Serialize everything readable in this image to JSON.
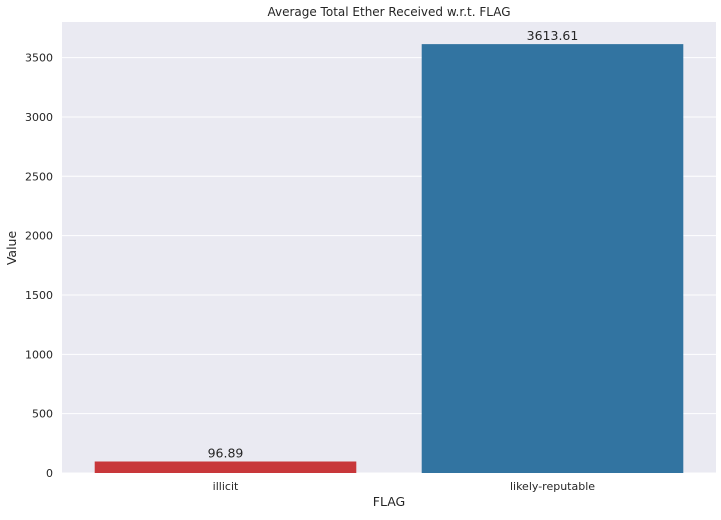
{
  "chart_data": {
    "type": "bar",
    "title": "Average Total Ether Received w.r.t. FLAG",
    "xlabel": "FLAG",
    "ylabel": "Value",
    "categories": [
      "illicit",
      "likely-reputable"
    ],
    "values": [
      96.89,
      3613.61
    ],
    "value_labels": [
      "96.89",
      "3613.61"
    ],
    "ylim": [
      0,
      3800
    ],
    "yticks": [
      0,
      500,
      1000,
      1500,
      2000,
      2500,
      3000,
      3500
    ],
    "ytick_labels": [
      "0",
      "500",
      "1000",
      "1500",
      "2000",
      "2500",
      "3000",
      "3500"
    ],
    "colors": [
      "#c8373a",
      "#3274a1"
    ],
    "grid": true,
    "background": "#eaeaf2"
  }
}
